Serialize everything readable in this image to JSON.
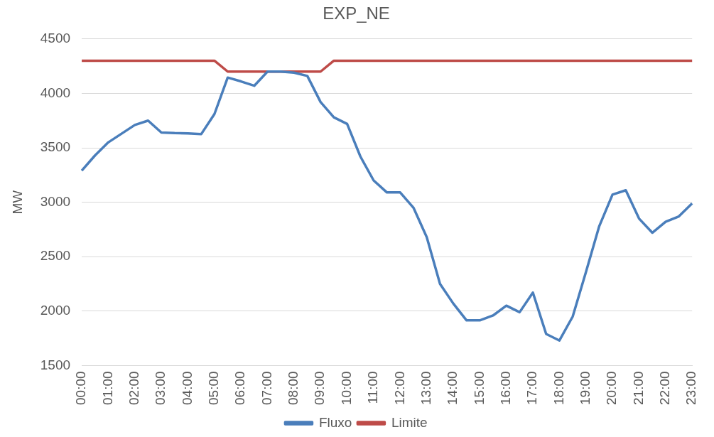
{
  "chart_data": {
    "type": "line",
    "title": "EXP_NE",
    "ylabel": "MW",
    "categories": [
      "00:00",
      null,
      "01:00",
      null,
      "02:00",
      null,
      "03:00",
      null,
      "04:00",
      null,
      "05:00",
      null,
      "06:00",
      null,
      "07:00",
      null,
      "08:00",
      null,
      "09:00",
      null,
      "10:00",
      null,
      "11:00",
      null,
      "12:00",
      null,
      "13:00",
      null,
      "14:00",
      null,
      "15:00",
      null,
      "16:00",
      null,
      "17:00",
      null,
      "18:00",
      null,
      "19:00",
      null,
      "20:00",
      null,
      "21:00",
      null,
      "22:00",
      null,
      "23:00"
    ],
    "series": [
      {
        "name": "Fluxo",
        "color": "#4a7ebb",
        "values": [
          3290,
          3430,
          3550,
          3630,
          3710,
          3750,
          3640,
          3635,
          3633,
          3625,
          3810,
          4145,
          4110,
          4070,
          4200,
          4200,
          4190,
          4160,
          3920,
          3780,
          3720,
          3420,
          3200,
          3090,
          3090,
          2950,
          2680,
          2250,
          2070,
          1915,
          1915,
          1960,
          2050,
          1990,
          2170,
          1790,
          1730,
          1950,
          2360,
          2780,
          3070,
          3110,
          2850,
          2720,
          2820,
          2870,
          2990
        ]
      },
      {
        "name": "Limite",
        "color": "#be4b48",
        "values": [
          4300,
          4300,
          4300,
          4300,
          4300,
          4300,
          4300,
          4300,
          4300,
          4300,
          4300,
          4200,
          4200,
          4200,
          4200,
          4200,
          4200,
          4200,
          4200,
          4300,
          4300,
          4300,
          4300,
          4300,
          4300,
          4300,
          4300,
          4300,
          4300,
          4300,
          4300,
          4300,
          4300,
          4300,
          4300,
          4300,
          4300,
          4300,
          4300,
          4300,
          4300,
          4300,
          4300,
          4300,
          4300,
          4300,
          4300
        ]
      }
    ],
    "ylim": [
      1500,
      4500
    ],
    "yticks": [
      1500,
      2000,
      2500,
      3000,
      3500,
      4000,
      4500
    ],
    "grid": "y",
    "legend": "bottom",
    "marker": "none",
    "line_style": "solid"
  }
}
